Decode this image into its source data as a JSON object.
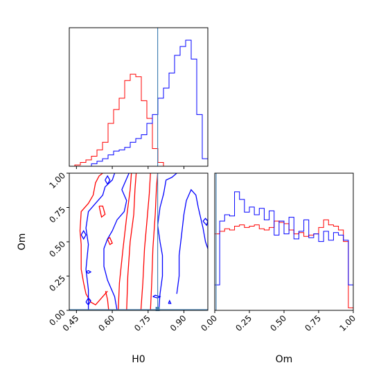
{
  "chart_data": {
    "type": "corner",
    "params": [
      "H0",
      "Om"
    ],
    "truth": {
      "H0": 0.79,
      "Om": 0.0
    },
    "truth_color": "#4682b4",
    "series_colors": {
      "red": "#ff0000",
      "blue": "#0000ff"
    },
    "axes": {
      "H0": {
        "label": "H0",
        "range": [
          0.42,
          1.0
        ],
        "ticks": [
          "0.45",
          "0.60",
          "0.75",
          "0.90"
        ],
        "tick_values": [
          0.45,
          0.6,
          0.75,
          0.9
        ]
      },
      "Om": {
        "label": "Om",
        "range": [
          0.0,
          1.0
        ],
        "ticks": [
          "0.00",
          "0.25",
          "0.50",
          "0.75",
          "1.00"
        ],
        "tick_values": [
          0.0,
          0.25,
          0.5,
          0.75,
          1.0
        ]
      }
    },
    "hist_H0": {
      "edges": [
        0.42,
        0.4432,
        0.4664,
        0.4896,
        0.5128,
        0.536,
        0.5592,
        0.5824,
        0.6056,
        0.6288,
        0.652,
        0.6752,
        0.6984,
        0.7216,
        0.7448,
        0.768,
        0.7912,
        0.8144,
        0.8376,
        0.8608,
        0.884,
        0.9072,
        0.9304,
        0.9536,
        0.9768,
        1.0
      ],
      "red": [
        0.0,
        0.01,
        0.03,
        0.05,
        0.08,
        0.13,
        0.19,
        0.34,
        0.45,
        0.54,
        0.68,
        0.73,
        0.71,
        0.52,
        0.38,
        0.14,
        0.03,
        0.0,
        0.0,
        0.0,
        0.0,
        0.0,
        0.0,
        0.0,
        0.0
      ],
      "blue": [
        0.0,
        0.0,
        0.0,
        0.0,
        0.02,
        0.04,
        0.06,
        0.09,
        0.12,
        0.13,
        0.15,
        0.19,
        0.22,
        0.25,
        0.34,
        0.41,
        0.54,
        0.62,
        0.74,
        0.88,
        0.95,
        1.0,
        0.85,
        0.41,
        0.06
      ]
    },
    "hist_Om": {
      "edges": [
        0.0,
        0.0357,
        0.0714,
        0.1071,
        0.1429,
        0.1786,
        0.2143,
        0.25,
        0.2857,
        0.3214,
        0.3571,
        0.3929,
        0.4286,
        0.4643,
        0.5,
        0.5357,
        0.5714,
        0.6071,
        0.6429,
        0.6786,
        0.7143,
        0.75,
        0.7857,
        0.8214,
        0.8571,
        0.8929,
        0.9286,
        0.9643,
        1.0
      ],
      "red": [
        0.6,
        0.62,
        0.64,
        0.63,
        0.66,
        0.67,
        0.65,
        0.66,
        0.67,
        0.64,
        0.63,
        0.65,
        0.7,
        0.69,
        0.68,
        0.63,
        0.6,
        0.61,
        0.58,
        0.59,
        0.6,
        0.65,
        0.71,
        0.67,
        0.66,
        0.63,
        0.54,
        0.02
      ],
      "blue": [
        0.2,
        0.7,
        0.75,
        0.74,
        0.93,
        0.87,
        0.77,
        0.81,
        0.75,
        0.8,
        0.71,
        0.78,
        0.59,
        0.7,
        0.6,
        0.73,
        0.56,
        0.62,
        0.71,
        0.57,
        0.6,
        0.54,
        0.62,
        0.55,
        0.61,
        0.59,
        0.55,
        0.2
      ]
    },
    "contours": {
      "red": [
        [
          [
            0.66,
            0.0
          ],
          [
            0.665,
            0.25
          ],
          [
            0.675,
            0.5
          ],
          [
            0.69,
            0.7
          ],
          [
            0.695,
            0.88
          ],
          [
            0.7,
            1.0
          ]
        ],
        [
          [
            0.72,
            0.0
          ],
          [
            0.728,
            0.2
          ],
          [
            0.735,
            0.45
          ],
          [
            0.745,
            0.65
          ],
          [
            0.755,
            0.85
          ],
          [
            0.76,
            1.0
          ]
        ],
        [
          [
            0.625,
            0.0
          ],
          [
            0.63,
            0.2
          ],
          [
            0.645,
            0.45
          ],
          [
            0.66,
            0.68
          ],
          [
            0.675,
            0.88
          ],
          [
            0.68,
            1.0
          ]
        ],
        [
          [
            0.76,
            0.0
          ],
          [
            0.765,
            0.2
          ],
          [
            0.77,
            0.45
          ],
          [
            0.78,
            0.7
          ],
          [
            0.785,
            0.9
          ],
          [
            0.79,
            1.0
          ]
        ],
        [
          [
            0.585,
            0.0
          ],
          [
            0.58,
            0.08
          ],
          [
            0.572,
            0.14
          ]
        ],
        [
          [
            0.47,
            0.48
          ],
          [
            0.47,
            0.3
          ],
          [
            0.48,
            0.2
          ],
          [
            0.49,
            0.12
          ],
          [
            0.51,
            0.06
          ],
          [
            0.53,
            0.04
          ],
          [
            0.55,
            0.08
          ],
          [
            0.58,
            0.14
          ]
        ],
        [
          [
            0.47,
            0.48
          ],
          [
            0.465,
            0.58
          ],
          [
            0.47,
            0.72
          ],
          [
            0.5,
            0.78
          ],
          [
            0.52,
            0.84
          ],
          [
            0.53,
            0.93
          ],
          [
            0.545,
            0.98
          ],
          [
            0.56,
            1.0
          ]
        ],
        [
          [
            0.545,
            0.76
          ],
          [
            0.55,
            0.72
          ],
          [
            0.555,
            0.68
          ],
          [
            0.57,
            0.7
          ],
          [
            0.56,
            0.76
          ],
          [
            0.545,
            0.76
          ]
        ],
        [
          [
            0.58,
            0.52
          ],
          [
            0.59,
            0.48
          ],
          [
            0.6,
            0.49
          ],
          [
            0.59,
            0.53
          ],
          [
            0.58,
            0.52
          ]
        ]
      ],
      "blue": [
        [
          [
            0.5,
            0.0
          ],
          [
            0.5,
            0.15
          ],
          [
            0.49,
            0.3
          ],
          [
            0.5,
            0.48
          ],
          [
            0.49,
            0.6
          ],
          [
            0.5,
            0.72
          ],
          [
            0.53,
            0.78
          ],
          [
            0.56,
            0.84
          ],
          [
            0.57,
            0.9
          ],
          [
            0.6,
            0.95
          ],
          [
            0.61,
            1.0
          ]
        ],
        [
          [
            0.62,
            0.0
          ],
          [
            0.61,
            0.1
          ],
          [
            0.58,
            0.22
          ],
          [
            0.565,
            0.32
          ],
          [
            0.565,
            0.45
          ],
          [
            0.58,
            0.52
          ],
          [
            0.6,
            0.58
          ],
          [
            0.62,
            0.66
          ],
          [
            0.65,
            0.72
          ],
          [
            0.66,
            0.8
          ],
          [
            0.64,
            0.88
          ],
          [
            0.66,
            0.96
          ],
          [
            0.67,
            1.0
          ]
        ],
        [
          [
            0.795,
            0.0
          ],
          [
            0.8,
            0.12
          ],
          [
            0.81,
            0.25
          ],
          [
            0.81,
            0.4
          ],
          [
            0.8,
            0.5
          ],
          [
            0.79,
            0.62
          ],
          [
            0.8,
            0.75
          ],
          [
            0.815,
            0.85
          ],
          [
            0.825,
            0.95
          ],
          [
            0.85,
            0.97
          ],
          [
            0.87,
            1.0
          ]
        ],
        [
          [
            0.87,
            0.12
          ],
          [
            0.88,
            0.25
          ],
          [
            0.88,
            0.4
          ],
          [
            0.89,
            0.55
          ],
          [
            0.9,
            0.7
          ],
          [
            0.91,
            0.8
          ],
          [
            0.93,
            0.88
          ],
          [
            0.95,
            0.84
          ],
          [
            0.96,
            0.75
          ],
          [
            0.98,
            0.6
          ],
          [
            0.99,
            0.5
          ],
          [
            1.0,
            0.45
          ]
        ],
        [
          [
            0.47,
            0.55
          ],
          [
            0.48,
            0.52
          ],
          [
            0.49,
            0.55
          ],
          [
            0.48,
            0.58
          ],
          [
            0.47,
            0.55
          ]
        ],
        [
          [
            0.49,
            0.28
          ],
          [
            0.5,
            0.27
          ],
          [
            0.51,
            0.28
          ],
          [
            0.5,
            0.29
          ],
          [
            0.49,
            0.28
          ]
        ],
        [
          [
            0.49,
            0.06
          ],
          [
            0.5,
            0.04
          ],
          [
            0.51,
            0.07
          ],
          [
            0.5,
            0.09
          ],
          [
            0.49,
            0.06
          ]
        ],
        [
          [
            0.57,
            0.95
          ],
          [
            0.58,
            0.92
          ],
          [
            0.59,
            0.95
          ],
          [
            0.58,
            0.98
          ],
          [
            0.57,
            0.95
          ]
        ],
        [
          [
            0.77,
            0.1
          ],
          [
            0.79,
            0.09
          ],
          [
            0.8,
            0.1
          ],
          [
            0.78,
            0.11
          ],
          [
            0.77,
            0.1
          ]
        ],
        [
          [
            0.835,
            0.05
          ],
          [
            0.84,
            0.07
          ],
          [
            0.845,
            0.05
          ],
          [
            0.835,
            0.05
          ]
        ],
        [
          [
            0.98,
            0.65
          ],
          [
            0.995,
            0.62
          ],
          [
            1.0,
            0.65
          ],
          [
            0.99,
            0.67
          ],
          [
            0.98,
            0.65
          ]
        ]
      ]
    }
  }
}
